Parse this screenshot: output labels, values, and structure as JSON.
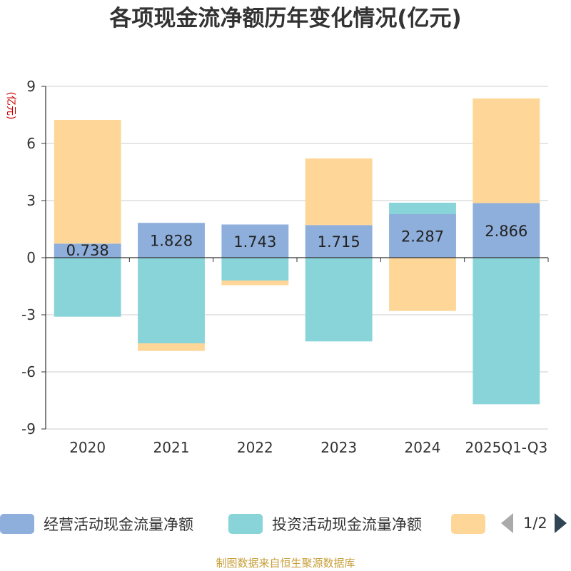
{
  "chart_data": {
    "type": "bar",
    "stacked": true,
    "title": "各项现金流净额历年变化情况(亿元)",
    "ylabel": "(亿元)",
    "ylim": [
      -9,
      9
    ],
    "yticks": [
      9,
      6,
      3,
      0,
      -3,
      -6,
      -9
    ],
    "ytick_labels": [
      "9",
      "6",
      "3",
      "0",
      "-3",
      "-6",
      "-9"
    ],
    "categories": [
      "2020",
      "2021",
      "2022",
      "2023",
      "2024",
      "2025Q1-Q3"
    ],
    "grid": true,
    "legend_position": "bottom",
    "series": [
      {
        "name": "经营活动现金流量净额",
        "color": "#8eaedb",
        "values": [
          0.738,
          1.828,
          1.743,
          1.715,
          2.287,
          2.866
        ],
        "labels": [
          "0.738",
          "1.828",
          "1.743",
          "1.715",
          "2.287",
          "2.866"
        ]
      },
      {
        "name": "投资活动现金流量净额",
        "color": "#88d4d8",
        "values": [
          -3.1,
          -4.5,
          -1.2,
          -4.4,
          0.6,
          -7.7
        ]
      },
      {
        "name": "",
        "color": "#fed798",
        "values": [
          6.5,
          -0.4,
          -0.25,
          3.5,
          -2.8,
          5.5
        ]
      }
    ]
  },
  "legend": {
    "items": [
      {
        "label": "经营活动现金流量净额",
        "color": "#8eaedb"
      },
      {
        "label": "投资活动现金流量净额",
        "color": "#88d4d8"
      },
      {
        "label": "",
        "color": "#fed798"
      }
    ],
    "pager_text": "1/2"
  },
  "source_text": "制图数据来自恒生聚源数据库"
}
